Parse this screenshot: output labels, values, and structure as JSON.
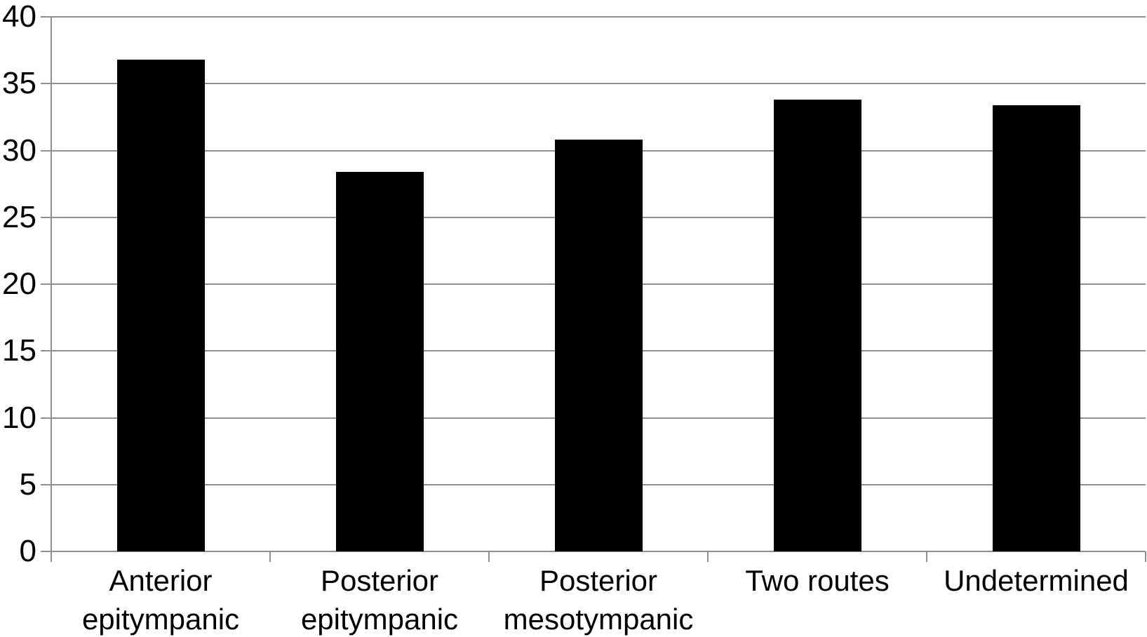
{
  "chart_data": {
    "type": "bar",
    "title": "",
    "xlabel": "",
    "ylabel": "",
    "categories": [
      "Anterior epitympanic",
      "Posterior epitympanic",
      "Posterior mesotympanic",
      "Two routes",
      "Undetermined"
    ],
    "category_label_lines": [
      [
        "Anterior",
        "epitympanic"
      ],
      [
        "Posterior",
        "epitympanic"
      ],
      [
        "Posterior",
        "mesotympanic"
      ],
      [
        "Two routes"
      ],
      [
        "Undetermined"
      ]
    ],
    "values": [
      36.8,
      28.4,
      30.8,
      33.8,
      33.4
    ],
    "ylim": [
      0,
      40
    ],
    "yticks": [
      0,
      5,
      10,
      15,
      20,
      25,
      30,
      35,
      40
    ],
    "grid": true,
    "legend_position": "none",
    "bar_color": "#000000",
    "gridline_color": "#8e8e8e",
    "axis_color": "#8e8e8e",
    "text_color": "#000000",
    "background_color": "#ffffff"
  }
}
